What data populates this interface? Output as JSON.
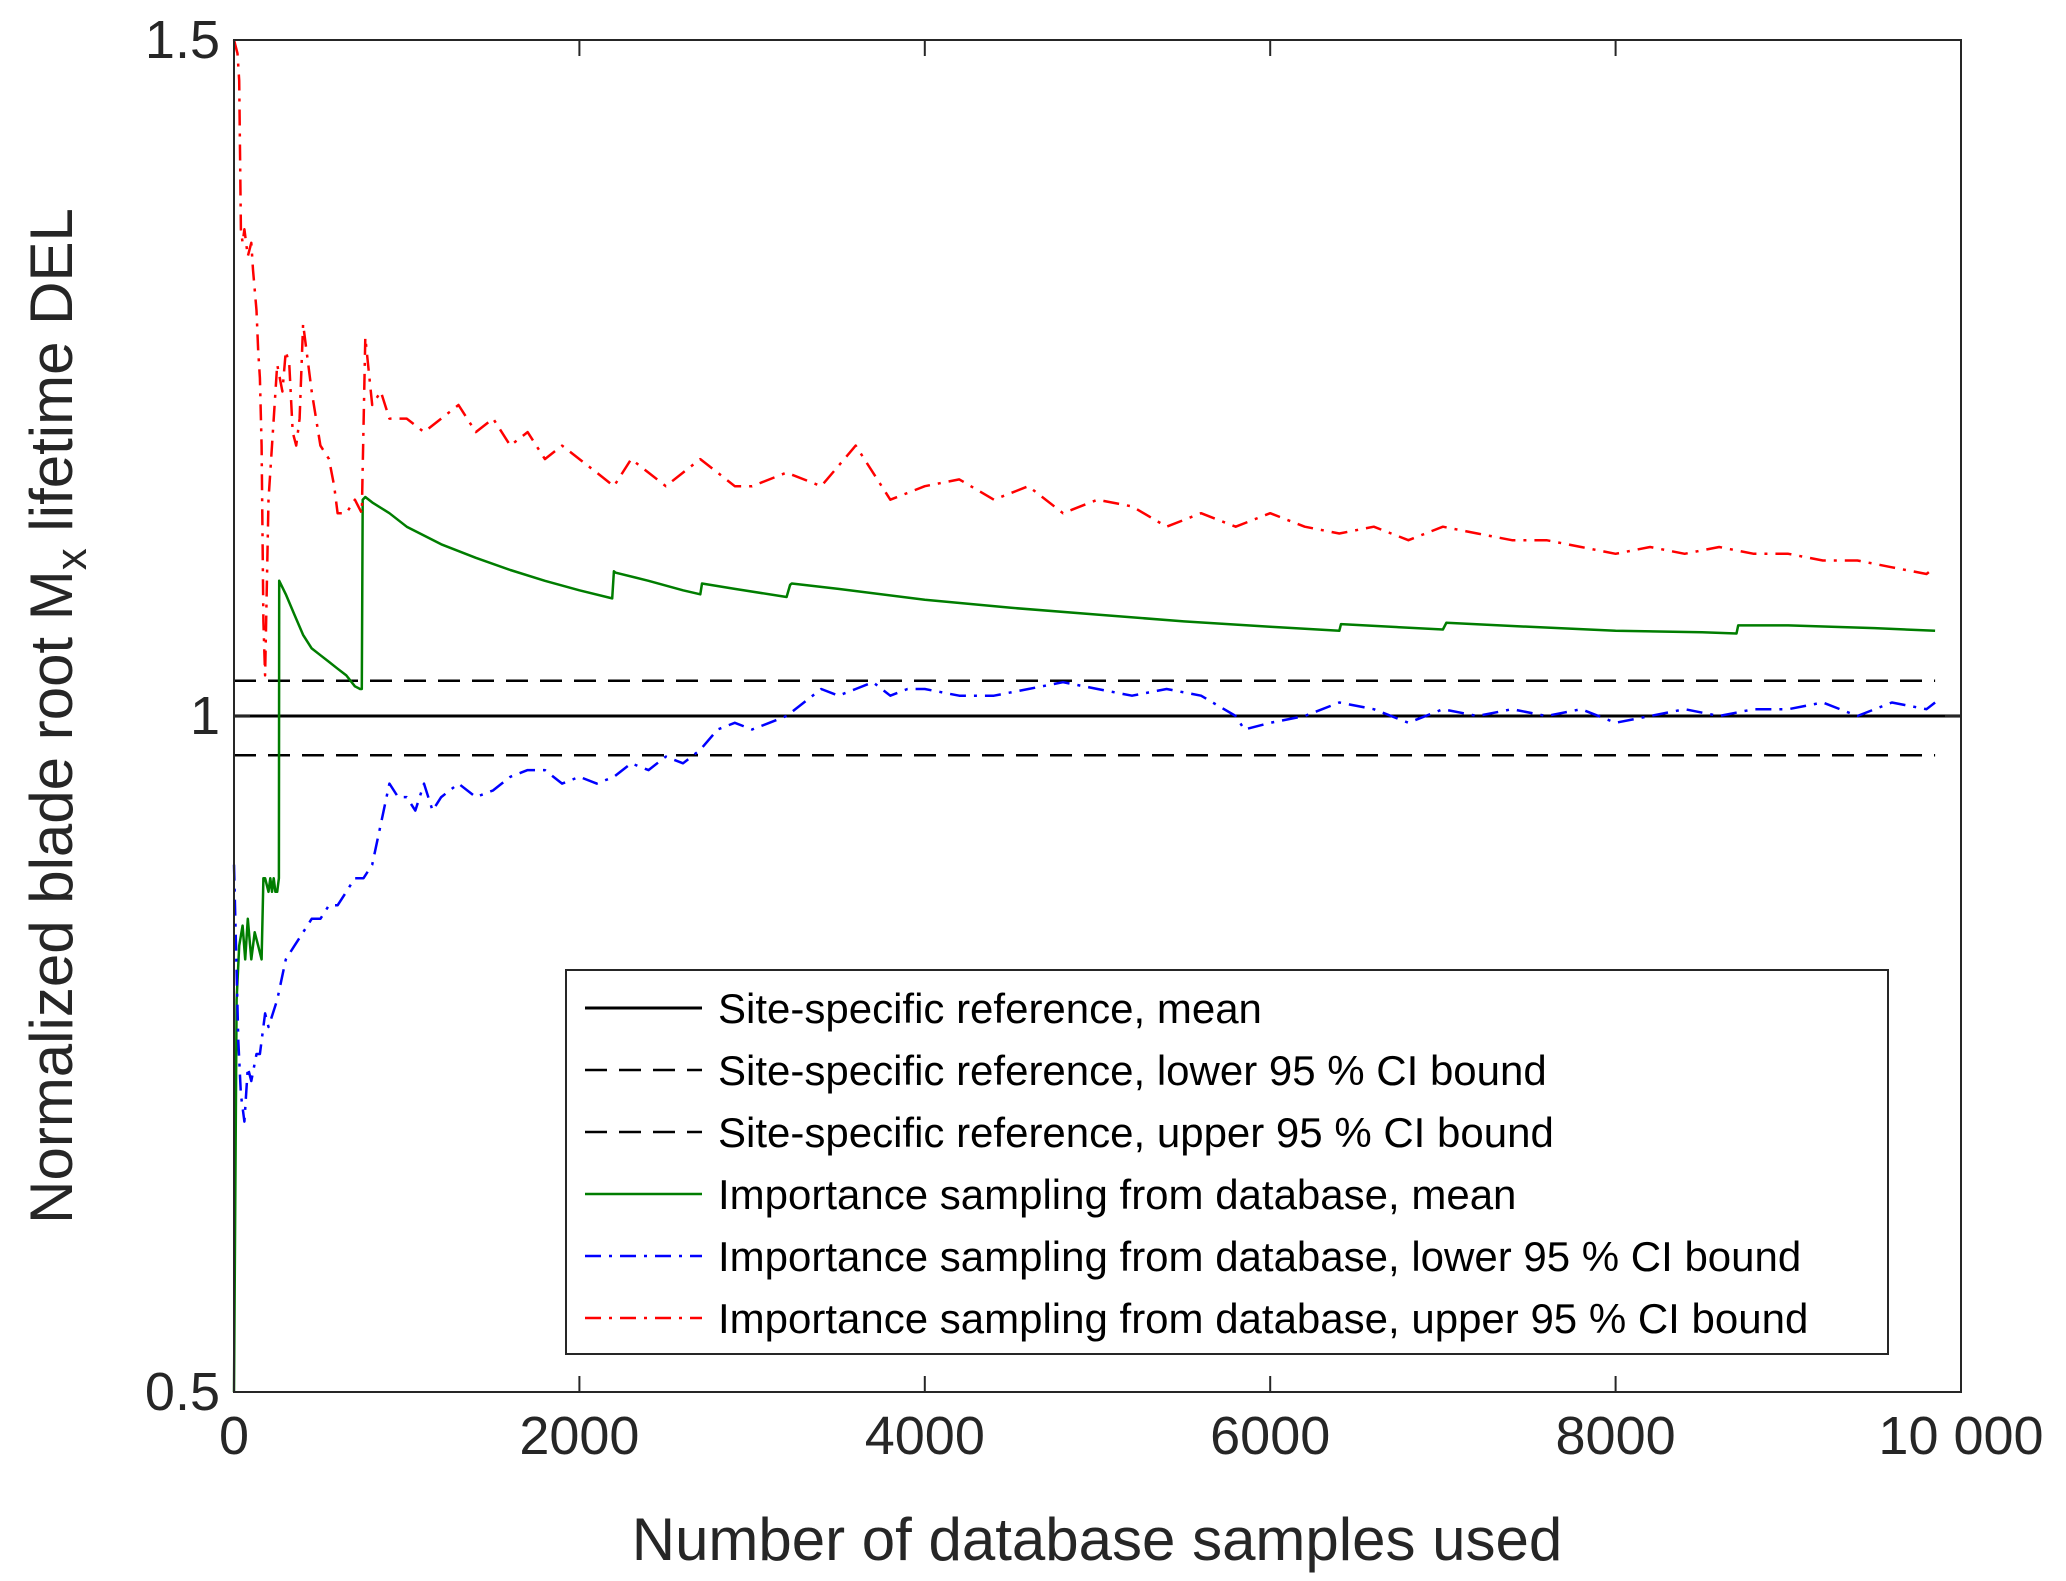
{
  "chart_data": {
    "type": "line",
    "xlabel": "Number of database samples used",
    "ylabel_prefix": "Normalized blade root M",
    "ylabel_subscript": "x",
    "ylabel_suffix": " lifetime DEL",
    "xlim": [
      0,
      10000
    ],
    "ylim": [
      0.5,
      1.5
    ],
    "xticks": [
      0,
      2000,
      4000,
      6000,
      8000,
      10000
    ],
    "xtick_labels": [
      "0",
      "2000",
      "4000",
      "6000",
      "8000",
      "10 000"
    ],
    "yticks": [
      0.5,
      1,
      1.5
    ],
    "ytick_labels": [
      "0.5",
      "1",
      "1.5"
    ],
    "grid": false,
    "legend_position": "bottom-right",
    "series": [
      {
        "name": "Site-specific reference, mean",
        "color": "#000000",
        "style": "solid",
        "x": [
          0,
          10000
        ],
        "y": [
          1.0,
          1.0
        ]
      },
      {
        "name": "Site-specific reference, lower 95 % CI bound",
        "color": "#000000",
        "style": "dashed",
        "x": [
          0,
          9850
        ],
        "y": [
          0.971,
          0.971
        ]
      },
      {
        "name": "Site-specific reference, upper 95 % CI bound",
        "color": "#000000",
        "style": "dashed",
        "x": [
          0,
          9850
        ],
        "y": [
          1.026,
          1.026
        ]
      },
      {
        "name": "Importance sampling from database, mean",
        "color": "#007d00",
        "style": "solid",
        "x": [
          0,
          15,
          30,
          50,
          65,
          80,
          100,
          120,
          140,
          160,
          170,
          180,
          200,
          210,
          220,
          230,
          240,
          250,
          260,
          262,
          300,
          350,
          400,
          450,
          500,
          550,
          600,
          650,
          700,
          730,
          740,
          745,
          760,
          800,
          900,
          1000,
          1200,
          1400,
          1600,
          1800,
          2000,
          2190,
          2200,
          2210,
          2400,
          2600,
          2700,
          2710,
          2900,
          3200,
          3220,
          3230,
          3500,
          4000,
          4500,
          5000,
          5500,
          6000,
          6400,
          6410,
          7000,
          7020,
          7500,
          8000,
          8500,
          8700,
          8710,
          9000,
          9500,
          9850
        ],
        "y": [
          0.5,
          0.79,
          0.83,
          0.845,
          0.82,
          0.85,
          0.82,
          0.84,
          0.83,
          0.82,
          0.88,
          0.88,
          0.87,
          0.88,
          0.87,
          0.88,
          0.87,
          0.87,
          0.88,
          1.1,
          1.09,
          1.075,
          1.06,
          1.05,
          1.045,
          1.04,
          1.035,
          1.03,
          1.022,
          1.02,
          1.02,
          1.16,
          1.162,
          1.158,
          1.15,
          1.14,
          1.127,
          1.117,
          1.108,
          1.1,
          1.093,
          1.087,
          1.107,
          1.106,
          1.1,
          1.093,
          1.09,
          1.098,
          1.094,
          1.088,
          1.097,
          1.098,
          1.094,
          1.086,
          1.08,
          1.075,
          1.07,
          1.066,
          1.063,
          1.068,
          1.064,
          1.069,
          1.066,
          1.063,
          1.062,
          1.061,
          1.067,
          1.067,
          1.065,
          1.063
        ]
      },
      {
        "name": "Importance sampling from database, lower 95 % CI bound",
        "color": "#0000ff",
        "style": "dashdot",
        "x": [
          0,
          25,
          40,
          60,
          80,
          100,
          130,
          150,
          180,
          200,
          250,
          300,
          350,
          400,
          450,
          500,
          550,
          600,
          650,
          700,
          750,
          800,
          850,
          900,
          950,
          1000,
          1050,
          1100,
          1150,
          1200,
          1300,
          1400,
          1500,
          1600,
          1700,
          1800,
          1900,
          2000,
          2100,
          2200,
          2300,
          2400,
          2500,
          2600,
          2700,
          2800,
          2900,
          3000,
          3100,
          3200,
          3300,
          3400,
          3500,
          3600,
          3700,
          3800,
          3900,
          4000,
          4200,
          4400,
          4600,
          4800,
          5000,
          5200,
          5400,
          5600,
          5800,
          5850,
          6000,
          6200,
          6400,
          6600,
          6800,
          7000,
          7200,
          7400,
          7600,
          7800,
          8000,
          8200,
          8400,
          8600,
          8800,
          9000,
          9200,
          9400,
          9600,
          9800,
          9850
        ],
        "y": [
          0.89,
          0.76,
          0.72,
          0.7,
          0.74,
          0.73,
          0.75,
          0.75,
          0.78,
          0.77,
          0.79,
          0.82,
          0.83,
          0.84,
          0.85,
          0.85,
          0.86,
          0.86,
          0.87,
          0.88,
          0.88,
          0.89,
          0.92,
          0.95,
          0.94,
          0.94,
          0.93,
          0.95,
          0.93,
          0.94,
          0.95,
          0.94,
          0.945,
          0.955,
          0.96,
          0.96,
          0.95,
          0.955,
          0.95,
          0.955,
          0.965,
          0.96,
          0.97,
          0.965,
          0.975,
          0.99,
          0.995,
          0.99,
          0.995,
          1.0,
          1.01,
          1.02,
          1.015,
          1.02,
          1.025,
          1.015,
          1.02,
          1.02,
          1.015,
          1.015,
          1.02,
          1.025,
          1.02,
          1.015,
          1.02,
          1.015,
          1.0,
          0.99,
          0.995,
          1.0,
          1.01,
          1.005,
          0.995,
          1.005,
          1.0,
          1.005,
          1.0,
          1.005,
          0.995,
          1.0,
          1.005,
          1.0,
          1.005,
          1.005,
          1.01,
          1.0,
          1.01,
          1.005,
          1.01
        ]
      },
      {
        "name": "Importance sampling from database, upper 95 % CI bound",
        "color": "#ff0000",
        "style": "dashdot",
        "x": [
          0,
          20,
          30,
          40,
          50,
          60,
          80,
          100,
          110,
          130,
          140,
          150,
          160,
          170,
          180,
          200,
          220,
          250,
          280,
          300,
          320,
          340,
          360,
          380,
          400,
          450,
          500,
          550,
          580,
          600,
          650,
          700,
          740,
          760,
          800,
          850,
          900,
          1000,
          1100,
          1200,
          1300,
          1400,
          1500,
          1600,
          1700,
          1800,
          1900,
          2000,
          2100,
          2200,
          2300,
          2400,
          2500,
          2600,
          2700,
          2800,
          2900,
          3000,
          3200,
          3400,
          3600,
          3800,
          4000,
          4200,
          4400,
          4600,
          4800,
          5000,
          5200,
          5400,
          5600,
          5800,
          6000,
          6200,
          6400,
          6600,
          6800,
          7000,
          7200,
          7400,
          7600,
          7800,
          8000,
          8200,
          8400,
          8600,
          8800,
          9000,
          9200,
          9400,
          9600,
          9800,
          9850
        ],
        "y": [
          1.5,
          1.49,
          1.47,
          1.36,
          1.35,
          1.36,
          1.34,
          1.35,
          1.33,
          1.3,
          1.27,
          1.25,
          1.2,
          1.07,
          1.03,
          1.16,
          1.2,
          1.26,
          1.24,
          1.27,
          1.26,
          1.21,
          1.2,
          1.22,
          1.29,
          1.24,
          1.2,
          1.19,
          1.17,
          1.15,
          1.15,
          1.16,
          1.15,
          1.28,
          1.23,
          1.24,
          1.22,
          1.22,
          1.21,
          1.22,
          1.23,
          1.21,
          1.22,
          1.2,
          1.21,
          1.19,
          1.2,
          1.19,
          1.18,
          1.17,
          1.19,
          1.18,
          1.17,
          1.18,
          1.19,
          1.18,
          1.17,
          1.17,
          1.18,
          1.17,
          1.2,
          1.16,
          1.17,
          1.175,
          1.16,
          1.17,
          1.15,
          1.16,
          1.155,
          1.14,
          1.15,
          1.14,
          1.15,
          1.14,
          1.135,
          1.14,
          1.13,
          1.14,
          1.135,
          1.13,
          1.13,
          1.125,
          1.12,
          1.125,
          1.12,
          1.125,
          1.12,
          1.12,
          1.115,
          1.115,
          1.11,
          1.105,
          1.11
        ]
      }
    ]
  }
}
